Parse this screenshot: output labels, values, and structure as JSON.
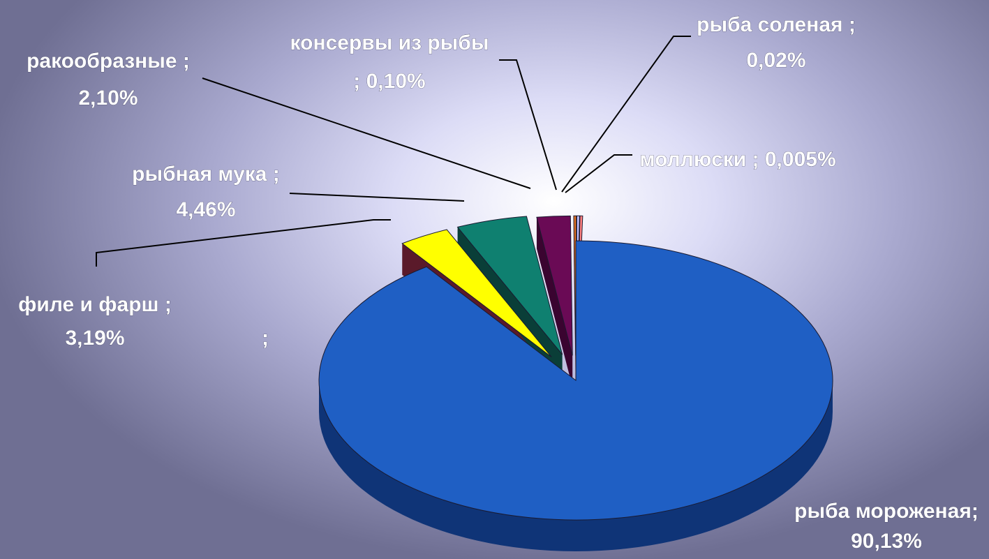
{
  "chart_data": {
    "type": "pie",
    "three_d": true,
    "legend": "none",
    "stray_label": ";",
    "slices": [
      {
        "label_line1": "рыба мороженая;",
        "label_line2": "90,13%",
        "value": 90.13,
        "color": "#1f5fc4",
        "side_color": "#0f3477"
      },
      {
        "label_line1": "филе и фарш ;",
        "label_line2": "3,19%",
        "value": 3.19,
        "color": "#ffff00",
        "side_color": "#5a1a2a"
      },
      {
        "label_line1": "рыбная мука ;",
        "label_line2": "4,46%",
        "value": 4.46,
        "color": "#0f8070",
        "side_color": "#0a3e38"
      },
      {
        "label_line1": "ракообразные ;",
        "label_line2": "2,10%",
        "value": 2.1,
        "color": "#6a0a55",
        "side_color": "#3a0430"
      },
      {
        "label_line1": "консервы из рыбы",
        "label_line2": "; 0,10%",
        "value": 0.1,
        "color": "#e07020",
        "side_color": "#803e10"
      },
      {
        "label_line1": "рыба соленая ;",
        "label_line2": "0,02%",
        "value": 0.02,
        "color": "#c0c0ff",
        "side_color": "#6060a0"
      },
      {
        "label_line1": "моллюски ; 0,005%",
        "label_line2": "",
        "value": 0.005,
        "color": "#ff8080",
        "side_color": "#804040"
      }
    ]
  }
}
